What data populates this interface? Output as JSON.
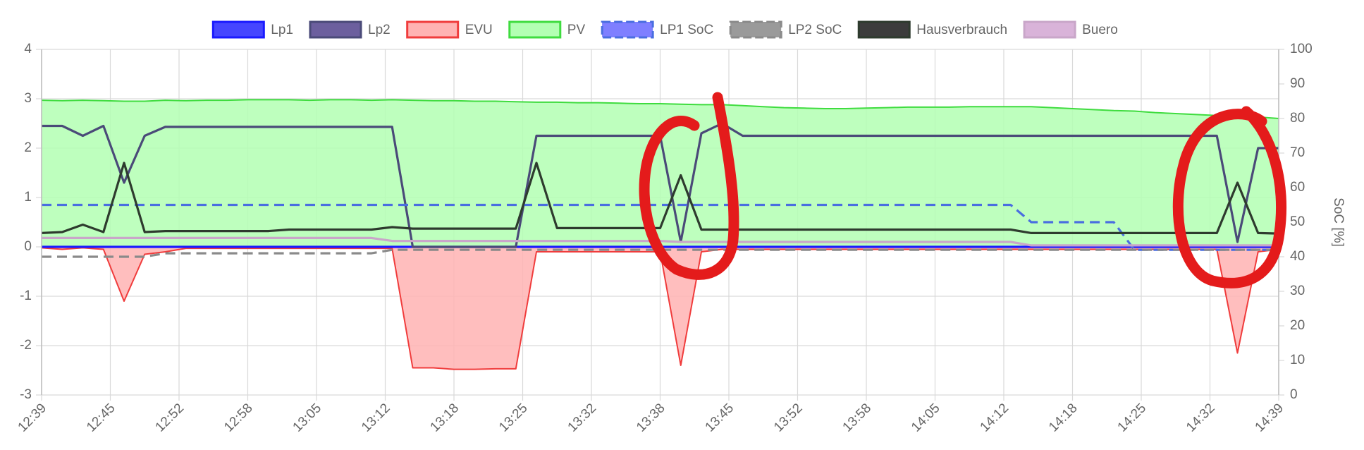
{
  "chart_data": {
    "type": "line",
    "x": [
      "12:39",
      "12:41",
      "12:43",
      "12:45",
      "12:47",
      "12:49",
      "12:51",
      "12:53",
      "12:55",
      "12:57",
      "12:59",
      "13:01",
      "13:03",
      "13:05",
      "13:07",
      "13:09",
      "13:11",
      "13:13",
      "13:15",
      "13:17",
      "13:19",
      "13:21",
      "13:23",
      "13:25",
      "13:27",
      "13:29",
      "13:31",
      "13:33",
      "13:35",
      "13:37",
      "13:39",
      "13:41",
      "13:43",
      "13:45",
      "13:47",
      "13:49",
      "13:51",
      "13:53",
      "13:55",
      "13:57",
      "13:59",
      "14:01",
      "14:03",
      "14:05",
      "14:07",
      "14:09",
      "14:11",
      "14:13",
      "14:15",
      "14:17",
      "14:19",
      "14:21",
      "14:23",
      "14:25",
      "14:27",
      "14:29",
      "14:31",
      "14:33",
      "14:35",
      "14:37",
      "14:39"
    ],
    "xticks": [
      "12:39",
      "12:45",
      "12:52",
      "12:58",
      "13:05",
      "13:12",
      "13:18",
      "13:25",
      "13:32",
      "13:38",
      "13:45",
      "13:52",
      "13:58",
      "14:05",
      "14:12",
      "14:18",
      "14:25",
      "14:32",
      "14:39"
    ],
    "ylim": [
      -3,
      4
    ],
    "yticks": [
      -3,
      -2,
      -1,
      0,
      1,
      2,
      3,
      4
    ],
    "y2lim": [
      0,
      100
    ],
    "y2ticks": [
      0,
      10,
      20,
      30,
      40,
      50,
      60,
      70,
      80,
      90,
      100
    ],
    "y2label": "SoC [%]",
    "grid": true,
    "series": [
      {
        "name": "Lp1",
        "color": "#1a1aff",
        "legend_fill": "#4646ff",
        "values": [
          0,
          0,
          0,
          0,
          0,
          0,
          0,
          0,
          0,
          0,
          0,
          0,
          0,
          0,
          0,
          0,
          0,
          0,
          0,
          0,
          0,
          0,
          0,
          0,
          0,
          0,
          0,
          0,
          0,
          0,
          0,
          0,
          0,
          0,
          0,
          0,
          0,
          0,
          0,
          0,
          0,
          0,
          0,
          0,
          0,
          0,
          0,
          0,
          0,
          0,
          0,
          0,
          0,
          0,
          0,
          0,
          0,
          0,
          0,
          0,
          0
        ]
      },
      {
        "name": "Lp2",
        "color": "#4a4a78",
        "legend_fill": "#6c5f9e",
        "values": [
          2.45,
          2.45,
          2.25,
          2.45,
          1.3,
          2.25,
          2.43,
          2.43,
          2.43,
          2.43,
          2.43,
          2.43,
          2.43,
          2.43,
          2.43,
          2.43,
          2.43,
          2.43,
          0,
          0,
          0,
          0,
          0,
          0,
          2.25,
          2.25,
          2.25,
          2.25,
          2.25,
          2.25,
          2.25,
          0.1,
          2.3,
          2.5,
          2.25,
          2.25,
          2.25,
          2.25,
          2.25,
          2.25,
          2.25,
          2.25,
          2.25,
          2.25,
          2.25,
          2.25,
          2.25,
          2.25,
          2.25,
          2.25,
          2.25,
          2.25,
          2.25,
          2.25,
          2.25,
          2.25,
          2.25,
          2.25,
          0.1,
          2.0,
          2.0
        ]
      },
      {
        "name": "EVU",
        "color": "#f03c3c",
        "legend_fill": "#ffb3b3",
        "area": true,
        "values": [
          -0.02,
          -0.05,
          -0.02,
          -0.05,
          -1.1,
          -0.15,
          -0.1,
          -0.03,
          -0.03,
          -0.03,
          -0.03,
          -0.03,
          -0.03,
          -0.03,
          -0.03,
          -0.03,
          -0.03,
          -0.03,
          -2.45,
          -2.45,
          -2.48,
          -2.48,
          -2.47,
          -2.47,
          -0.1,
          -0.1,
          -0.1,
          -0.1,
          -0.1,
          -0.1,
          -0.1,
          -2.4,
          -0.1,
          -0.05,
          -0.05,
          -0.05,
          -0.05,
          -0.05,
          -0.05,
          -0.05,
          -0.05,
          -0.05,
          -0.05,
          -0.05,
          -0.05,
          -0.05,
          -0.05,
          -0.05,
          -0.05,
          -0.05,
          -0.05,
          -0.05,
          -0.05,
          -0.05,
          -0.05,
          -0.05,
          -0.05,
          -0.05,
          -2.15,
          -0.1,
          -0.05
        ]
      },
      {
        "name": "PV",
        "color": "#3fdc3f",
        "legend_fill": "#b3ffb3",
        "area": true,
        "values": [
          2.97,
          2.96,
          2.97,
          2.96,
          2.95,
          2.95,
          2.97,
          2.96,
          2.97,
          2.97,
          2.98,
          2.98,
          2.98,
          2.97,
          2.98,
          2.98,
          2.97,
          2.98,
          2.97,
          2.96,
          2.96,
          2.95,
          2.95,
          2.94,
          2.93,
          2.93,
          2.92,
          2.92,
          2.91,
          2.9,
          2.9,
          2.89,
          2.88,
          2.88,
          2.86,
          2.84,
          2.82,
          2.81,
          2.8,
          2.8,
          2.81,
          2.82,
          2.83,
          2.83,
          2.83,
          2.84,
          2.84,
          2.84,
          2.84,
          2.82,
          2.8,
          2.78,
          2.76,
          2.75,
          2.72,
          2.7,
          2.68,
          2.66,
          2.65,
          2.63,
          2.6
        ]
      },
      {
        "name": "LP1 SoC",
        "color": "#4a6ee0",
        "legend_fill": "#7f7fff",
        "dash": true,
        "axis": "y2",
        "values": [
          55,
          55,
          55,
          55,
          55,
          55,
          55,
          55,
          55,
          55,
          55,
          55,
          55,
          55,
          55,
          55,
          55,
          55,
          55,
          55,
          55,
          55,
          55,
          55,
          55,
          55,
          55,
          55,
          55,
          55,
          55,
          55,
          55,
          55,
          55,
          55,
          55,
          55,
          55,
          55,
          55,
          55,
          55,
          55,
          55,
          55,
          55,
          55,
          50,
          50,
          50,
          50,
          50,
          42,
          42,
          42,
          42,
          42,
          42,
          42,
          42
        ]
      },
      {
        "name": "LP2 SoC",
        "color": "#8a8a8a",
        "legend_fill": "#9a9a9a",
        "dash": true,
        "axis": "y2",
        "values": [
          40,
          40,
          40,
          40,
          40,
          40,
          41,
          41,
          41,
          41,
          41,
          41,
          41,
          41,
          41,
          41,
          41,
          42,
          42,
          42,
          42,
          42,
          42,
          42,
          42,
          42,
          42,
          42,
          42,
          42,
          42,
          42,
          42,
          42,
          42,
          42,
          42,
          42,
          42,
          42,
          42,
          42,
          42,
          42,
          42,
          42,
          42,
          42,
          42,
          42,
          42,
          42,
          42,
          42,
          42,
          42,
          42,
          42,
          42,
          42,
          42
        ]
      },
      {
        "name": "Hausverbrauch",
        "color": "#2e3b2e",
        "legend_fill": "#3c3c3c",
        "values": [
          0.28,
          0.3,
          0.45,
          0.3,
          1.7,
          0.3,
          0.32,
          0.32,
          0.32,
          0.32,
          0.32,
          0.32,
          0.35,
          0.35,
          0.35,
          0.35,
          0.35,
          0.4,
          0.37,
          0.37,
          0.37,
          0.37,
          0.37,
          0.37,
          1.7,
          0.38,
          0.38,
          0.38,
          0.38,
          0.38,
          0.38,
          1.45,
          0.35,
          0.35,
          0.35,
          0.35,
          0.35,
          0.35,
          0.35,
          0.35,
          0.35,
          0.35,
          0.35,
          0.35,
          0.35,
          0.35,
          0.35,
          0.35,
          0.28,
          0.28,
          0.28,
          0.28,
          0.28,
          0.28,
          0.28,
          0.28,
          0.28,
          0.28,
          1.3,
          0.28,
          0.27
        ]
      },
      {
        "name": "Buero",
        "color": "#c9a6c9",
        "legend_fill": "#d9b3d9",
        "values": [
          0.18,
          0.18,
          0.18,
          0.18,
          0.18,
          0.18,
          0.18,
          0.18,
          0.18,
          0.18,
          0.18,
          0.18,
          0.18,
          0.18,
          0.18,
          0.18,
          0.18,
          0.12,
          0.12,
          0.12,
          0.12,
          0.12,
          0.12,
          0.12,
          0.12,
          0.12,
          0.12,
          0.12,
          0.12,
          0.12,
          0.12,
          0.1,
          0.1,
          0.1,
          0.1,
          0.1,
          0.1,
          0.1,
          0.1,
          0.1,
          0.1,
          0.1,
          0.1,
          0.1,
          0.1,
          0.1,
          0.1,
          0.1,
          0.03,
          0.03,
          0.03,
          0.03,
          0.03,
          0.03,
          0.03,
          0.03,
          0.03,
          0.03,
          0.03,
          0.03,
          0.03
        ]
      }
    ]
  }
}
